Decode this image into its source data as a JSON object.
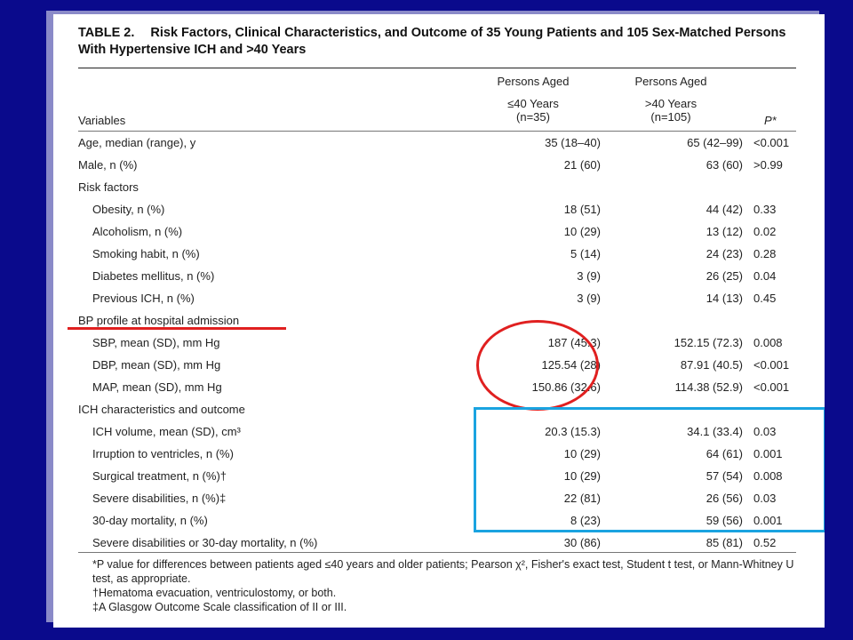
{
  "title": {
    "number": "TABLE 2.",
    "text": "Risk Factors, Clinical Characteristics, and Outcome of 35 Young Patients and 105 Sex-Matched Persons With Hypertensive ICH and >40 Years"
  },
  "header": {
    "variables": "Variables",
    "col1": [
      "Persons Aged",
      "≤40 Years",
      "(n=35)"
    ],
    "col2": [
      "Persons Aged",
      ">40 Years",
      "(n=105)"
    ],
    "p": "P*"
  },
  "rows": [
    {
      "label": "Age, median (range), y",
      "c1": "35 (18–40)",
      "c2": "65 (42–99)",
      "p": "<0.001",
      "indent": false
    },
    {
      "label": "Male, n (%)",
      "c1": "21 (60)",
      "c2": "63 (60)",
      "p": ">0.99",
      "indent": false
    },
    {
      "label": "Risk factors",
      "c1": "",
      "c2": "",
      "p": "",
      "indent": false
    },
    {
      "label": "Obesity, n (%)",
      "c1": "18 (51)",
      "c2": "44 (42)",
      "p": "0.33",
      "indent": true
    },
    {
      "label": "Alcoholism, n (%)",
      "c1": "10 (29)",
      "c2": "13 (12)",
      "p": "0.02",
      "indent": true
    },
    {
      "label": "Smoking habit, n (%)",
      "c1": "5 (14)",
      "c2": "24 (23)",
      "p": "0.28",
      "indent": true
    },
    {
      "label": "Diabetes mellitus, n (%)",
      "c1": "3 (9)",
      "c2": "26 (25)",
      "p": "0.04",
      "indent": true
    },
    {
      "label": "Previous ICH, n (%)",
      "c1": "3 (9)",
      "c2": "14 (13)",
      "p": "0.45",
      "indent": true
    },
    {
      "label": "BP profile at hospital admission",
      "c1": "",
      "c2": "",
      "p": "",
      "indent": false
    },
    {
      "label": "SBP, mean (SD), mm Hg",
      "c1": "187 (45.3)",
      "c2": "152.15 (72.3)",
      "p": "0.008",
      "indent": true
    },
    {
      "label": "DBP, mean (SD), mm Hg",
      "c1": "125.54 (28)",
      "c2": "87.91 (40.5)",
      "p": "<0.001",
      "indent": true
    },
    {
      "label": "MAP, mean (SD), mm Hg",
      "c1": "150.86 (32.6)",
      "c2": "114.38 (52.9)",
      "p": "<0.001",
      "indent": true
    },
    {
      "label": "ICH characteristics and outcome",
      "c1": "",
      "c2": "",
      "p": "",
      "indent": false
    },
    {
      "label": "ICH volume, mean (SD), cm³",
      "c1": "20.3 (15.3)",
      "c2": "34.1 (33.4)",
      "p": "0.03",
      "indent": true
    },
    {
      "label": "Irruption to ventricles, n (%)",
      "c1": "10 (29)",
      "c2": "64 (61)",
      "p": "0.001",
      "indent": true
    },
    {
      "label": "Surgical treatment, n (%)†",
      "c1": "10 (29)",
      "c2": "57 (54)",
      "p": "0.008",
      "indent": true
    },
    {
      "label": "Severe disabilities, n (%)‡",
      "c1": "22 (81)",
      "c2": "26 (56)",
      "p": "0.03",
      "indent": true
    },
    {
      "label": "30-day mortality, n (%)",
      "c1": "8 (23)",
      "c2": "59 (56)",
      "p": "0.001",
      "indent": true
    },
    {
      "label": "Severe disabilities or 30-day mortality, n (%)",
      "c1": "30 (86)",
      "c2": "85 (81)",
      "p": "0.52",
      "indent": true
    }
  ],
  "footnotes": [
    "*P value for differences between patients aged ≤40 years and older patients; Pearson χ², Fisher's exact test, Student t test, or Mann-Whitney U test, as appropriate.",
    "†Hematoma evacuation, ventriculostomy, or both.",
    "‡A Glasgow Outcome Scale classification of II or III."
  ],
  "annotations": {
    "underline_color": "#e02020",
    "oval_color": "#e02020",
    "box_color": "#1aa3e0"
  }
}
